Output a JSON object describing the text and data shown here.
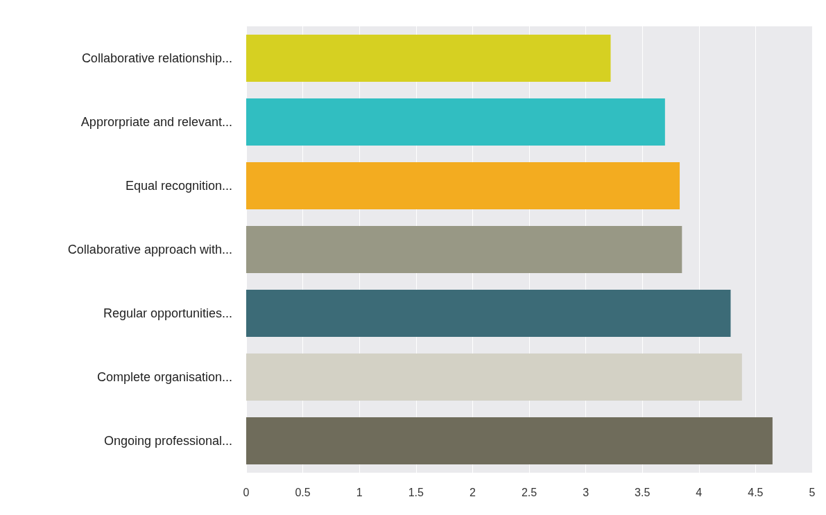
{
  "chart_data": {
    "type": "bar",
    "orientation": "horizontal",
    "categories": [
      "Collaborative relationship...",
      "Approrpriate and relevant...",
      "Equal recognition...",
      "Collaborative approach with...",
      "Regular opportunities...",
      "Complete organisation...",
      "Ongoing professional..."
    ],
    "values": [
      3.22,
      3.7,
      3.83,
      3.85,
      4.28,
      4.38,
      4.65
    ],
    "colors": [
      "#d6d022",
      "#31bec1",
      "#f3ac20",
      "#989885",
      "#3c6b77",
      "#d3d1c5",
      "#6f6c5b"
    ],
    "xlim": [
      0,
      5
    ],
    "xticks": [
      0,
      0.5,
      1,
      1.5,
      2,
      2.5,
      3,
      3.5,
      4,
      4.5,
      5
    ],
    "grid": "x"
  }
}
